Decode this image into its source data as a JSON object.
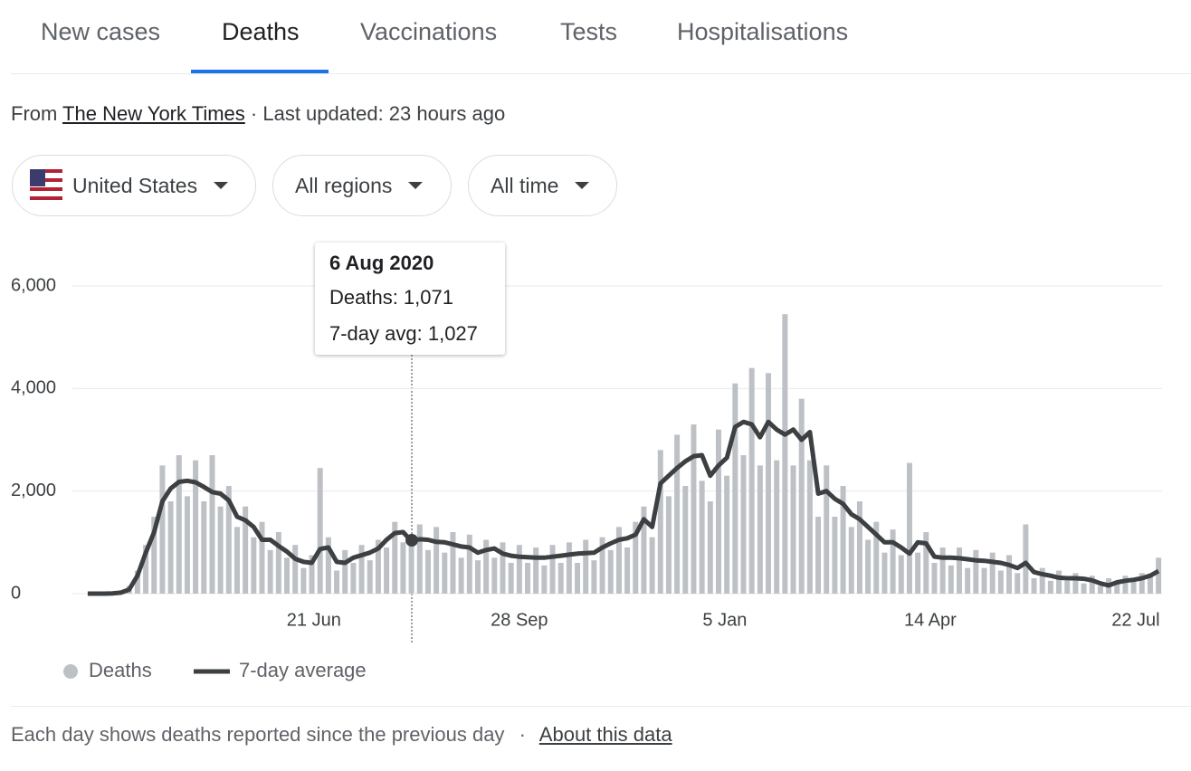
{
  "tabs": [
    "New cases",
    "Deaths",
    "Vaccinations",
    "Tests",
    "Hospitalisations"
  ],
  "source": {
    "prefix": "From",
    "link": "The New York Times",
    "updated": "· Last updated: 23 hours ago"
  },
  "filters": [
    "United States",
    "All regions",
    "All time"
  ],
  "tooltip": {
    "date": "6 Aug 2020",
    "lines": [
      "Deaths: 1,071",
      "7-day avg: 1,027"
    ]
  },
  "footer": {
    "text": "Each day shows deaths reported since the previous day",
    "separator": "·",
    "link": "About this data"
  },
  "chart_data": {
    "type": "bar",
    "x": [
      -109,
      -105,
      -101,
      -97,
      -93,
      -89,
      -85,
      -81,
      -77,
      -73,
      -69,
      -65,
      -61,
      -57,
      -53,
      -49,
      -45,
      -41,
      -37,
      -33,
      -29,
      -25,
      -21,
      -17,
      -13,
      -9,
      -5,
      -1,
      3,
      7,
      11,
      15,
      19,
      23,
      27,
      31,
      35,
      39,
      43,
      47,
      51,
      55,
      59,
      63,
      67,
      71,
      75,
      79,
      83,
      87,
      91,
      95,
      99,
      103,
      107,
      111,
      115,
      119,
      123,
      127,
      131,
      135,
      139,
      143,
      147,
      151,
      155,
      159,
      163,
      167,
      171,
      175,
      179,
      183,
      187,
      191,
      195,
      199,
      203,
      207,
      211,
      215,
      219,
      223,
      227,
      231,
      235,
      239,
      243,
      247,
      251,
      255,
      259,
      263,
      267,
      271,
      275,
      279,
      283,
      287,
      291,
      295,
      299,
      303,
      307,
      311,
      315,
      319,
      323,
      327,
      331,
      335,
      339,
      343,
      347,
      351,
      355,
      359,
      363,
      367,
      371,
      375,
      379,
      383,
      387,
      391,
      395,
      399,
      403,
      407
    ],
    "series": [
      {
        "name": "Deaths",
        "type": "bar",
        "color": "#bdc1c6",
        "values": [
          0,
          0,
          1,
          10,
          40,
          150,
          450,
          950,
          1500,
          2500,
          1800,
          2700,
          1900,
          2600,
          1800,
          2700,
          1700,
          2100,
          1300,
          1700,
          1100,
          1400,
          850,
          1200,
          700,
          950,
          500,
          750,
          2450,
          1100,
          450,
          850,
          600,
          950,
          650,
          1050,
          900,
          1400,
          1000,
          1071,
          1350,
          850,
          1300,
          800,
          1200,
          700,
          1150,
          650,
          1050,
          700,
          1000,
          600,
          950,
          600,
          900,
          550,
          950,
          600,
          1000,
          600,
          1050,
          650,
          1100,
          850,
          1300,
          900,
          1400,
          1700,
          1100,
          2800,
          1900,
          3100,
          2100,
          3300,
          2200,
          1800,
          3200,
          2300,
          4100,
          2700,
          4400,
          2500,
          4300,
          2600,
          5450,
          2500,
          3800,
          2600,
          1500,
          2500,
          1500,
          2100,
          1300,
          1800,
          1050,
          1400,
          800,
          1250,
          750,
          2550,
          800,
          1200,
          600,
          900,
          550,
          900,
          500,
          850,
          500,
          800,
          450,
          750,
          400,
          1350,
          300,
          500,
          250,
          450,
          250,
          400,
          200,
          350,
          150,
          300,
          200,
          350,
          250,
          400,
          350,
          700
        ]
      },
      {
        "name": "7-day average",
        "type": "line",
        "color": "#3c4043",
        "values": [
          0,
          0,
          0,
          5,
          20,
          80,
          350,
          800,
          1200,
          1800,
          2050,
          2180,
          2200,
          2170,
          2080,
          1980,
          1950,
          1820,
          1500,
          1430,
          1300,
          1050,
          1050,
          930,
          820,
          680,
          620,
          600,
          870,
          900,
          620,
          600,
          700,
          750,
          800,
          880,
          1050,
          1180,
          1200,
          1027,
          1060,
          1050,
          1010,
          1000,
          960,
          920,
          900,
          800,
          850,
          880,
          780,
          740,
          720,
          710,
          700,
          700,
          720,
          740,
          760,
          780,
          790,
          800,
          900,
          980,
          1050,
          1080,
          1150,
          1450,
          1300,
          2150,
          2300,
          2450,
          2580,
          2680,
          2700,
          2300,
          2500,
          2650,
          3250,
          3350,
          3300,
          3050,
          3350,
          3200,
          3100,
          3200,
          3000,
          3150,
          1950,
          2000,
          1850,
          1750,
          1550,
          1450,
          1300,
          1150,
          1000,
          1000,
          900,
          780,
          1000,
          980,
          720,
          700,
          700,
          690,
          670,
          650,
          640,
          620,
          600,
          560,
          500,
          600,
          420,
          380,
          350,
          310,
          300,
          300,
          290,
          260,
          200,
          160,
          220,
          250,
          270,
          300,
          350,
          440
        ]
      }
    ],
    "xlim": [
      -112,
      410
    ],
    "xticks": [
      {
        "value": 0,
        "label": "21 Jun"
      },
      {
        "value": 99,
        "label": "28 Sep"
      },
      {
        "value": 198,
        "label": "5 Jan"
      },
      {
        "value": 297,
        "label": "14 Apr"
      },
      {
        "value": 396,
        "label": "22 Jul"
      }
    ],
    "ylim": [
      0,
      6000
    ],
    "yticks": [
      0,
      {
        "value": 2000,
        "label": "2,000"
      },
      {
        "value": 4000,
        "label": "4,000"
      },
      {
        "value": 6000,
        "label": "6,000"
      }
    ],
    "grid": true
  }
}
